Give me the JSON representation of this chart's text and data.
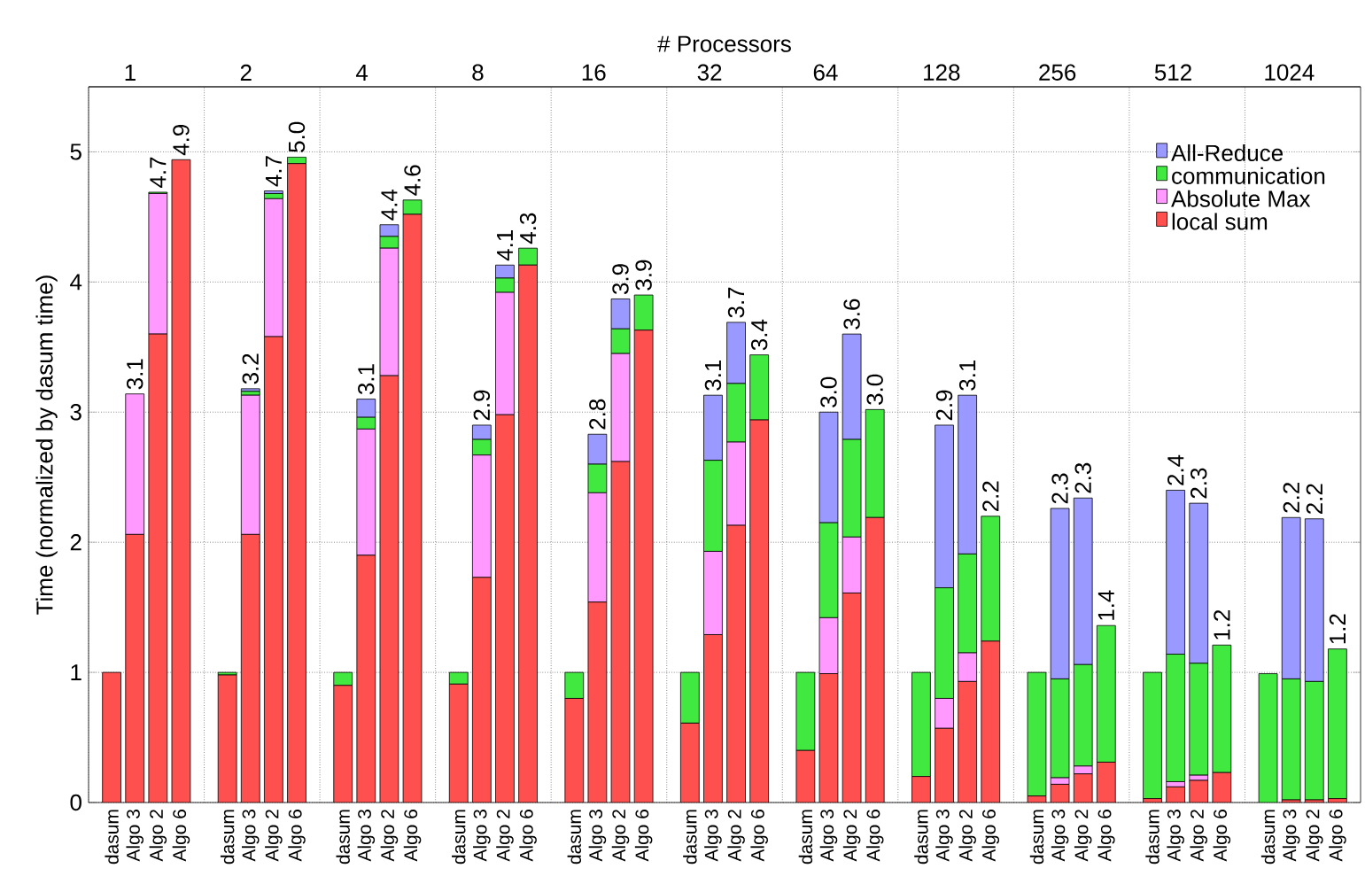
{
  "chart_data": {
    "type": "bar",
    "stacked": true,
    "x2label": "# Processors",
    "ylabel": "Time (normalized by dasum time)",
    "categories": [
      null,
      "dasum",
      "Algo 3",
      "Algo 2",
      "Algo 6",
      null,
      "dasum",
      "Algo 3",
      "Algo 2",
      "Algo 6",
      null,
      "dasum",
      "Algo 3",
      "Algo 2",
      "Algo 6",
      null,
      "dasum",
      "Algo 3",
      "Algo 2",
      "Algo 6",
      null,
      "dasum",
      "Algo 3",
      "Algo 2",
      "Algo 6",
      null,
      "dasum",
      "Algo 3",
      "Algo 2",
      "Algo 6",
      null,
      "dasum",
      "Algo 3",
      "Algo 2",
      "Algo 6",
      null,
      "dasum",
      "Algo 3",
      "Algo 2",
      "Algo 6",
      null,
      "dasum",
      "Algo 3",
      "Algo 2",
      "Algo 6",
      null,
      "dasum",
      "Algo 3",
      "Algo 2",
      "Algo 6",
      null,
      "dasum",
      "Algo 3",
      "Algo 2",
      "Algo 6"
    ],
    "series": [
      {
        "name": "local sum",
        "color": "#ff5050",
        "values": [
          null,
          1.0,
          2.06,
          3.6,
          4.94,
          null,
          0.98,
          2.06,
          3.58,
          4.91,
          null,
          0.9,
          1.9,
          3.28,
          4.52,
          null,
          0.91,
          1.73,
          2.98,
          4.13,
          null,
          0.8,
          1.54,
          2.62,
          3.63,
          null,
          0.61,
          1.29,
          2.13,
          2.94,
          null,
          0.4,
          0.99,
          1.61,
          2.19,
          null,
          0.2,
          0.57,
          0.93,
          1.24,
          null,
          0.05,
          0.14,
          0.22,
          0.31,
          null,
          0.03,
          0.12,
          0.17,
          0.23,
          null,
          null,
          0.02,
          0.02,
          0.03
        ]
      },
      {
        "name": "Absolute Max",
        "color": "#ff99ff",
        "values": [
          null,
          0,
          1.08,
          1.08,
          0,
          null,
          0,
          1.07,
          1.06,
          0,
          null,
          0,
          0.97,
          0.98,
          0,
          null,
          0,
          0.94,
          0.94,
          0,
          null,
          0,
          0.84,
          0.83,
          0,
          null,
          0,
          0.64,
          0.64,
          0,
          null,
          0,
          0.43,
          0.43,
          0,
          null,
          0,
          0.23,
          0.22,
          0,
          null,
          0,
          0.05,
          0.06,
          0,
          null,
          0,
          0.04,
          0.04,
          0,
          null,
          0,
          0,
          0,
          0
        ]
      },
      {
        "name": "communication",
        "color": "#40e840",
        "values": [
          null,
          0,
          0,
          0.01,
          0,
          null,
          0.02,
          0.03,
          0.04,
          0.05,
          null,
          0.1,
          0.09,
          0.09,
          0.11,
          null,
          0.09,
          0.12,
          0.11,
          0.13,
          null,
          0.2,
          0.22,
          0.19,
          0.27,
          null,
          0.39,
          0.7,
          0.45,
          0.5,
          null,
          0.6,
          0.73,
          0.75,
          0.83,
          null,
          0.8,
          0.85,
          0.76,
          0.96,
          null,
          0.95,
          0.76,
          0.78,
          1.05,
          null,
          0.97,
          0.98,
          0.86,
          0.98,
          null,
          0.99,
          0.93,
          0.91,
          1.15
        ]
      },
      {
        "name": "All-Reduce",
        "color": "#9999ff",
        "values": [
          null,
          0,
          0,
          0,
          0,
          null,
          0,
          0.02,
          0.02,
          0,
          null,
          0,
          0.14,
          0.09,
          0,
          null,
          0,
          0.11,
          0.1,
          0,
          null,
          0,
          0.23,
          0.23,
          0,
          null,
          0,
          0.5,
          0.47,
          0,
          null,
          0,
          0.85,
          0.81,
          0,
          null,
          0,
          1.25,
          1.22,
          0,
          null,
          0,
          1.31,
          1.28,
          0,
          null,
          0,
          1.26,
          1.23,
          0,
          null,
          0,
          1.24,
          1.25,
          0
        ]
      }
    ],
    "totals": [
      null,
      null,
      "3.1",
      "4.7",
      "4.9",
      null,
      null,
      "3.2",
      "4.7",
      "5.0",
      null,
      null,
      "3.1",
      "4.4",
      "4.6",
      null,
      null,
      "2.9",
      "4.1",
      "4.3",
      null,
      null,
      "2.8",
      "3.9",
      "3.9",
      null,
      null,
      "3.1",
      "3.7",
      "3.4",
      null,
      null,
      "3.0",
      "3.6",
      "3.0",
      null,
      null,
      "2.9",
      "3.1",
      "2.2",
      null,
      null,
      "2.3",
      "2.3",
      "1.4",
      null,
      null,
      "2.4",
      "2.3",
      "1.2",
      null,
      null,
      "2.2",
      "2.2",
      "1.2"
    ],
    "ylim": [
      0,
      5.5
    ],
    "yticks": [
      0,
      1,
      2,
      3,
      4,
      5
    ],
    "x2lim": [
      0.78,
      1570
    ],
    "x2ticks": [
      1,
      2,
      4,
      8,
      16,
      32,
      64,
      128,
      256,
      512,
      1024
    ],
    "log": "x2",
    "grid": true,
    "legend": "top right"
  }
}
